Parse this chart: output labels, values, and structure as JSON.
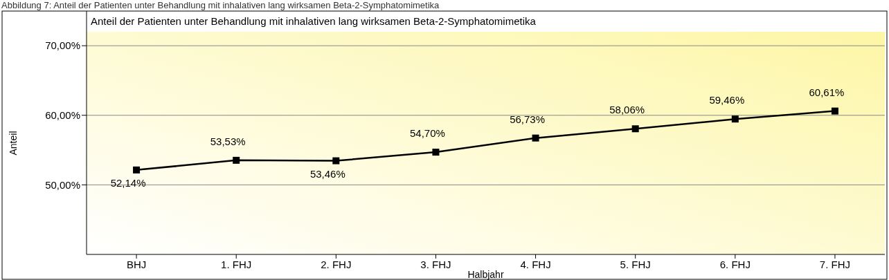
{
  "chart_data": {
    "type": "line",
    "title": "Anteil der Patienten unter Behandlung mit inhalativen lang wirksamen Beta-2-Symphatomimetika",
    "xlabel": "Halbjahr",
    "ylabel": "Anteil",
    "annotations": [
      "Abbildung 7: Anteil der Patienten unter Behandlung mit inhalativen lang wirksamen Beta-2-Symphatomimetika"
    ],
    "categories": [
      "BHJ",
      "1. FHJ",
      "2. FHJ",
      "3. FHJ",
      "4. FHJ",
      "5. FHJ",
      "6. FHJ",
      "7. FHJ"
    ],
    "series": [
      {
        "color": "#000000",
        "values": [
          52.14,
          53.53,
          53.46,
          54.7,
          56.73,
          58.06,
          59.46,
          60.61
        ],
        "value_labels": [
          "52,14%",
          "53,53%",
          "53,46%",
          "54,70%",
          "56,73%",
          "58,06%",
          "59,46%",
          "60,61%"
        ]
      }
    ],
    "ylim": [
      40,
      72
    ],
    "yticks": [
      {
        "value": 50,
        "label": "50,00%"
      },
      {
        "value": 60,
        "label": "60,00%"
      },
      {
        "value": 70,
        "label": "70,00%"
      }
    ],
    "grid": "y",
    "marker": "square",
    "line_style": "solid"
  }
}
